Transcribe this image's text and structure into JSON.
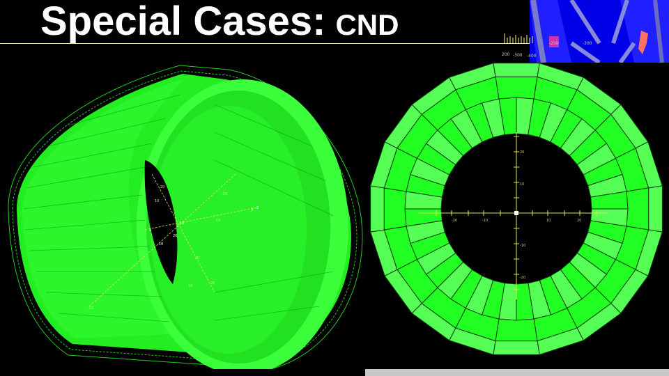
{
  "slide": {
    "title_main": "Special Cases:",
    "title_sub": "CND"
  },
  "thumbnail": {
    "scale_labels": [
      "200",
      "-300",
      "-400",
      "-250",
      "-300"
    ]
  },
  "left_view": {
    "axis_labels": [
      "x",
      "y",
      "z",
      "10",
      "20",
      "-10",
      "-20",
      "10",
      "20",
      "-10",
      "-20",
      "10",
      "20",
      "-10"
    ]
  },
  "right_view": {
    "segments": 20,
    "vertical_labels": [
      "20",
      "10",
      "-10",
      "-20"
    ],
    "horizontal_labels": [
      "-20",
      "-10",
      "10",
      "20"
    ]
  },
  "colors": {
    "background": "#000000",
    "detector_green": "#22ff22",
    "detector_light": "#55ff55",
    "axis_yellow": "#e6e64a",
    "thumb_blue": "#0000e6"
  }
}
